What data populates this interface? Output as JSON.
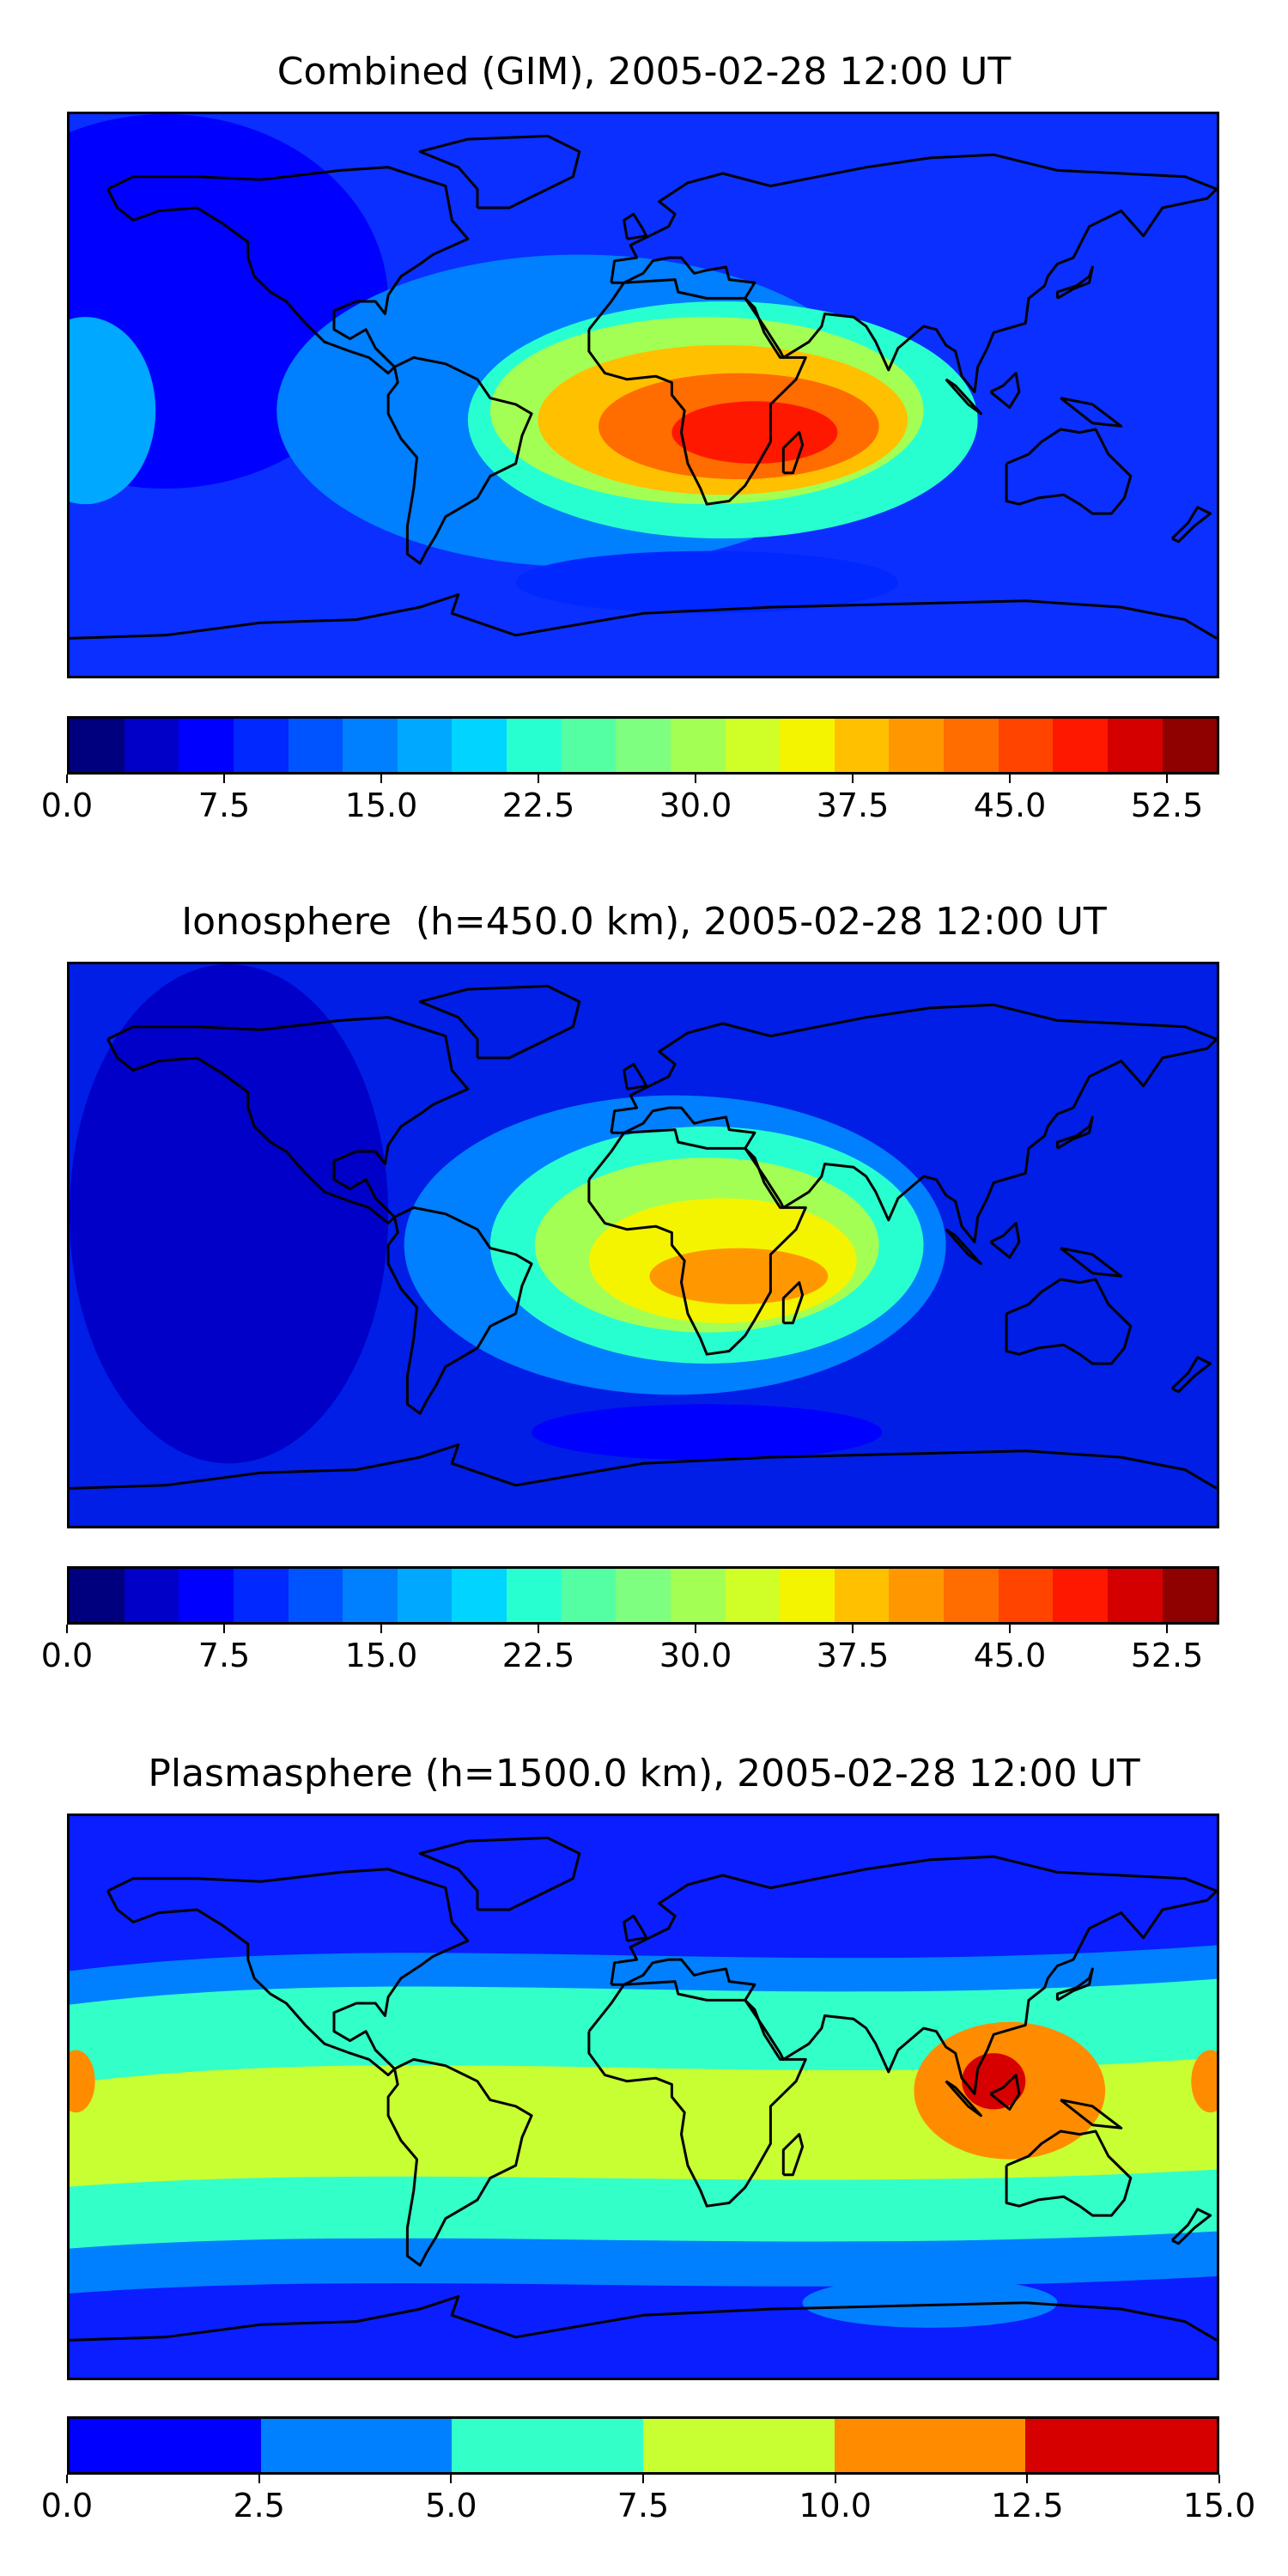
{
  "panels": [
    {
      "title": "Combined (GIM), 2005-02-28 12:00 UT",
      "map_label": "TEC map with world coastlines",
      "colorbar": {
        "colors": [
          "#00007f",
          "#0000c8",
          "#0000ff",
          "#0028ff",
          "#0054ff",
          "#007fff",
          "#00a8ff",
          "#00d4ff",
          "#28ffd0",
          "#54ffa4",
          "#7fff7f",
          "#a4ff54",
          "#d0ff28",
          "#f4f400",
          "#ffc000",
          "#ff9800",
          "#ff6c00",
          "#ff4400",
          "#ff1800",
          "#d40000",
          "#8f0000"
        ],
        "range": [
          0,
          55
        ],
        "tick_values": [
          0.0,
          7.5,
          15.0,
          22.5,
          30.0,
          37.5,
          45.0,
          52.5
        ],
        "tick_labels": [
          "0.0",
          "7.5",
          "15.0",
          "22.5",
          "30.0",
          "37.5",
          "45.0",
          "52.5"
        ]
      },
      "background_color": "#0a2fff",
      "blobs": [
        {
          "level": 0.14,
          "lon": -150,
          "lat": 30,
          "rx": 70,
          "ry": 60
        },
        {
          "level": 0.28,
          "lon": -20,
          "lat": -5,
          "rx": 95,
          "ry": 50
        },
        {
          "level": 0.42,
          "lon": 25,
          "lat": -8,
          "rx": 80,
          "ry": 38
        },
        {
          "level": 0.55,
          "lon": 20,
          "lat": -5,
          "rx": 68,
          "ry": 30
        },
        {
          "level": 0.68,
          "lon": 25,
          "lat": -8,
          "rx": 58,
          "ry": 24
        },
        {
          "level": 0.8,
          "lon": 30,
          "lat": -10,
          "rx": 44,
          "ry": 17
        },
        {
          "level": 0.9,
          "lon": 35,
          "lat": -12,
          "rx": 26,
          "ry": 10
        },
        {
          "level": 0.3,
          "lon": -175,
          "lat": -5,
          "rx": 22,
          "ry": 30
        },
        {
          "level": 0.15,
          "lon": 20,
          "lat": -60,
          "rx": 60,
          "ry": 10
        }
      ]
    },
    {
      "title": "Ionosphere  (h=450.0 km), 2005-02-28 12:00 UT",
      "map_label": "Ionosphere TEC map with world coastlines",
      "colorbar": {
        "colors": [
          "#00007f",
          "#0000c8",
          "#0000ff",
          "#0028ff",
          "#0054ff",
          "#007fff",
          "#00a8ff",
          "#00d4ff",
          "#28ffd0",
          "#54ffa4",
          "#7fff7f",
          "#a4ff54",
          "#d0ff28",
          "#f4f400",
          "#ffc000",
          "#ff9800",
          "#ff6c00",
          "#ff4400",
          "#ff1800",
          "#d40000",
          "#8f0000"
        ],
        "range": [
          0,
          55
        ],
        "tick_values": [
          0.0,
          7.5,
          15.0,
          22.5,
          30.0,
          37.5,
          45.0,
          52.5
        ],
        "tick_labels": [
          "0.0",
          "7.5",
          "15.0",
          "22.5",
          "30.0",
          "37.5",
          "45.0",
          "52.5"
        ]
      },
      "background_color": "#001ee6",
      "blobs": [
        {
          "level": 0.05,
          "lon": -130,
          "lat": 10,
          "rx": 50,
          "ry": 80
        },
        {
          "level": 0.28,
          "lon": 10,
          "lat": 0,
          "rx": 85,
          "ry": 48
        },
        {
          "level": 0.42,
          "lon": 20,
          "lat": 0,
          "rx": 68,
          "ry": 38
        },
        {
          "level": 0.55,
          "lon": 20,
          "lat": 0,
          "rx": 54,
          "ry": 28
        },
        {
          "level": 0.66,
          "lon": 25,
          "lat": -5,
          "rx": 42,
          "ry": 20
        },
        {
          "level": 0.74,
          "lon": 30,
          "lat": -10,
          "rx": 28,
          "ry": 9
        },
        {
          "level": 0.14,
          "lon": 20,
          "lat": -60,
          "rx": 55,
          "ry": 9
        }
      ]
    },
    {
      "title": "Plasmasphere (h=1500.0 km), 2005-02-28 12:00 UT",
      "map_label": "Plasmasphere TEC map with world coastlines",
      "colorbar": {
        "colors": [
          "#0000ff",
          "#0080ff",
          "#33ffc8",
          "#c8ff33",
          "#ff8c00",
          "#d70000"
        ],
        "range": [
          0,
          15
        ],
        "tick_values": [
          0.0,
          2.5,
          5.0,
          7.5,
          10.0,
          12.5,
          15.0
        ],
        "tick_labels": [
          "0.0",
          "2.5",
          "5.0",
          "7.5",
          "10.0",
          "12.5",
          "15.0"
        ]
      },
      "background_color": "#0a1eff",
      "bands": [
        {
          "color": "#0080ff",
          "top": 0.23,
          "bottom": 0.85
        },
        {
          "color": "#33ffc8",
          "top": 0.29,
          "bottom": 0.77
        },
        {
          "color": "#c8ff33",
          "top": 0.43,
          "bottom": 0.66
        }
      ],
      "blobs": [
        {
          "color": "#ff8c00",
          "lon": 115,
          "lat": 2,
          "rx": 30,
          "ry": 22
        },
        {
          "color": "#d70000",
          "lon": 110,
          "lat": 5,
          "rx": 10,
          "ry": 9
        },
        {
          "color": "#ff8c00",
          "lon": -178,
          "lat": 5,
          "rx": 6,
          "ry": 10
        },
        {
          "color": "#ff8c00",
          "lon": 178,
          "lat": 5,
          "rx": 6,
          "ry": 10
        },
        {
          "color": "#0080ff",
          "lon": 90,
          "lat": -66,
          "rx": 40,
          "ry": 8
        }
      ]
    }
  ]
}
